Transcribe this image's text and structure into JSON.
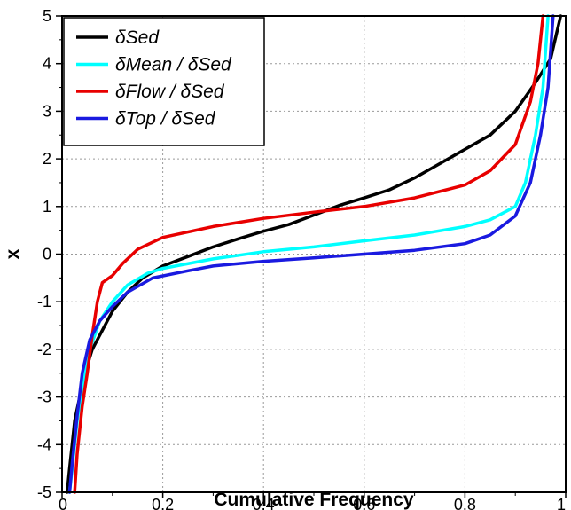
{
  "chart_data": {
    "type": "line",
    "title": "",
    "xlabel": "Cumulative Frequency",
    "ylabel": "x",
    "xlim": [
      0,
      1
    ],
    "ylim": [
      -5,
      5
    ],
    "x_ticks": [
      "0",
      "0.2",
      "0.4",
      "0.6",
      "0.8",
      "1"
    ],
    "y_ticks": [
      "5",
      "4",
      "3",
      "2",
      "1",
      "0",
      "-1",
      "-2",
      "-3",
      "-4",
      "-5"
    ],
    "grid": true,
    "legend_position": "top-left",
    "series": [
      {
        "name": "δSed",
        "color": "#000000",
        "points": [
          [
            0.01,
            -5
          ],
          [
            0.015,
            -4.5
          ],
          [
            0.025,
            -3.5
          ],
          [
            0.035,
            -3
          ],
          [
            0.045,
            -2.5
          ],
          [
            0.06,
            -2
          ],
          [
            0.08,
            -1.6
          ],
          [
            0.1,
            -1.2
          ],
          [
            0.13,
            -0.8
          ],
          [
            0.16,
            -0.5
          ],
          [
            0.2,
            -0.25
          ],
          [
            0.25,
            -0.05
          ],
          [
            0.3,
            0.15
          ],
          [
            0.35,
            0.32
          ],
          [
            0.4,
            0.48
          ],
          [
            0.45,
            0.62
          ],
          [
            0.5,
            0.82
          ],
          [
            0.55,
            1.02
          ],
          [
            0.6,
            1.18
          ],
          [
            0.65,
            1.35
          ],
          [
            0.7,
            1.6
          ],
          [
            0.75,
            1.9
          ],
          [
            0.8,
            2.2
          ],
          [
            0.85,
            2.5
          ],
          [
            0.9,
            3.0
          ],
          [
            0.94,
            3.6
          ],
          [
            0.97,
            4.1
          ],
          [
            0.99,
            5.0
          ]
        ]
      },
      {
        "name": "δMean / δSed",
        "color": "#00ffff",
        "points": [
          [
            0.015,
            -5
          ],
          [
            0.02,
            -4.5
          ],
          [
            0.03,
            -3.5
          ],
          [
            0.04,
            -2.8
          ],
          [
            0.055,
            -2
          ],
          [
            0.075,
            -1.4
          ],
          [
            0.1,
            -1.0
          ],
          [
            0.13,
            -0.65
          ],
          [
            0.17,
            -0.4
          ],
          [
            0.2,
            -0.3
          ],
          [
            0.3,
            -0.1
          ],
          [
            0.4,
            0.05
          ],
          [
            0.5,
            0.15
          ],
          [
            0.6,
            0.28
          ],
          [
            0.7,
            0.4
          ],
          [
            0.8,
            0.58
          ],
          [
            0.85,
            0.72
          ],
          [
            0.9,
            1.0
          ],
          [
            0.92,
            1.5
          ],
          [
            0.94,
            2.5
          ],
          [
            0.955,
            3.5
          ],
          [
            0.965,
            5.0
          ]
        ]
      },
      {
        "name": "δFlow / δSed",
        "color": "#e80000",
        "points": [
          [
            0.025,
            -5
          ],
          [
            0.03,
            -4.2
          ],
          [
            0.04,
            -3.2
          ],
          [
            0.05,
            -2.5
          ],
          [
            0.06,
            -1.7
          ],
          [
            0.07,
            -1.0
          ],
          [
            0.08,
            -0.6
          ],
          [
            0.1,
            -0.45
          ],
          [
            0.12,
            -0.2
          ],
          [
            0.15,
            0.1
          ],
          [
            0.2,
            0.35
          ],
          [
            0.3,
            0.58
          ],
          [
            0.4,
            0.75
          ],
          [
            0.5,
            0.88
          ],
          [
            0.6,
            1.0
          ],
          [
            0.7,
            1.18
          ],
          [
            0.8,
            1.45
          ],
          [
            0.85,
            1.75
          ],
          [
            0.9,
            2.3
          ],
          [
            0.93,
            3.2
          ],
          [
            0.945,
            4.0
          ],
          [
            0.955,
            5.0
          ]
        ]
      },
      {
        "name": "δTop / δSed",
        "color": "#1a1ae0",
        "points": [
          [
            0.015,
            -5
          ],
          [
            0.02,
            -4.4
          ],
          [
            0.03,
            -3.4
          ],
          [
            0.04,
            -2.5
          ],
          [
            0.055,
            -1.8
          ],
          [
            0.075,
            -1.4
          ],
          [
            0.1,
            -1.1
          ],
          [
            0.13,
            -0.8
          ],
          [
            0.18,
            -0.5
          ],
          [
            0.25,
            -0.35
          ],
          [
            0.3,
            -0.25
          ],
          [
            0.4,
            -0.15
          ],
          [
            0.5,
            -0.08
          ],
          [
            0.6,
            0.0
          ],
          [
            0.7,
            0.08
          ],
          [
            0.8,
            0.22
          ],
          [
            0.85,
            0.4
          ],
          [
            0.9,
            0.8
          ],
          [
            0.93,
            1.5
          ],
          [
            0.95,
            2.5
          ],
          [
            0.965,
            3.5
          ],
          [
            0.975,
            5.0
          ]
        ]
      }
    ]
  }
}
